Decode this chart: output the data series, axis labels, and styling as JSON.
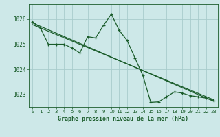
{
  "title": "Graphe pression niveau de la mer (hPa)",
  "background_color": "#cde8e8",
  "grid_color": "#a8cccc",
  "line_color": "#1a5c2a",
  "xlim": [
    -0.5,
    23.5
  ],
  "ylim": [
    1022.5,
    1026.6
  ],
  "yticks": [
    1023,
    1024,
    1025,
    1026
  ],
  "xtick_labels": [
    "0",
    "1",
    "2",
    "3",
    "4",
    "5",
    "6",
    "7",
    "8",
    "9",
    "10",
    "11",
    "12",
    "13",
    "14",
    "15",
    "16",
    "17",
    "18",
    "19",
    "20",
    "21",
    "22",
    "23"
  ],
  "series1_x": [
    0,
    1,
    2,
    3,
    4,
    5,
    6,
    7,
    8,
    9,
    10,
    11,
    12,
    13,
    14,
    15,
    16,
    17,
    18,
    19,
    20,
    21,
    22,
    23
  ],
  "series1_y": [
    1025.9,
    1025.65,
    1025.0,
    1025.0,
    1025.0,
    1024.85,
    1024.65,
    1025.3,
    1025.25,
    1025.75,
    1026.2,
    1025.55,
    1025.15,
    1024.45,
    1023.75,
    1022.68,
    1022.7,
    1022.9,
    1023.1,
    1023.05,
    1022.95,
    1022.9,
    1022.85,
    1022.75
  ],
  "series2_x": [
    0,
    23
  ],
  "series2_y": [
    1025.85,
    1022.72
  ],
  "series3_x": [
    0,
    23
  ],
  "series3_y": [
    1025.78,
    1022.78
  ],
  "title_fontsize": 6.0,
  "tick_fontsize": 5.2,
  "ytick_fontsize": 5.5
}
